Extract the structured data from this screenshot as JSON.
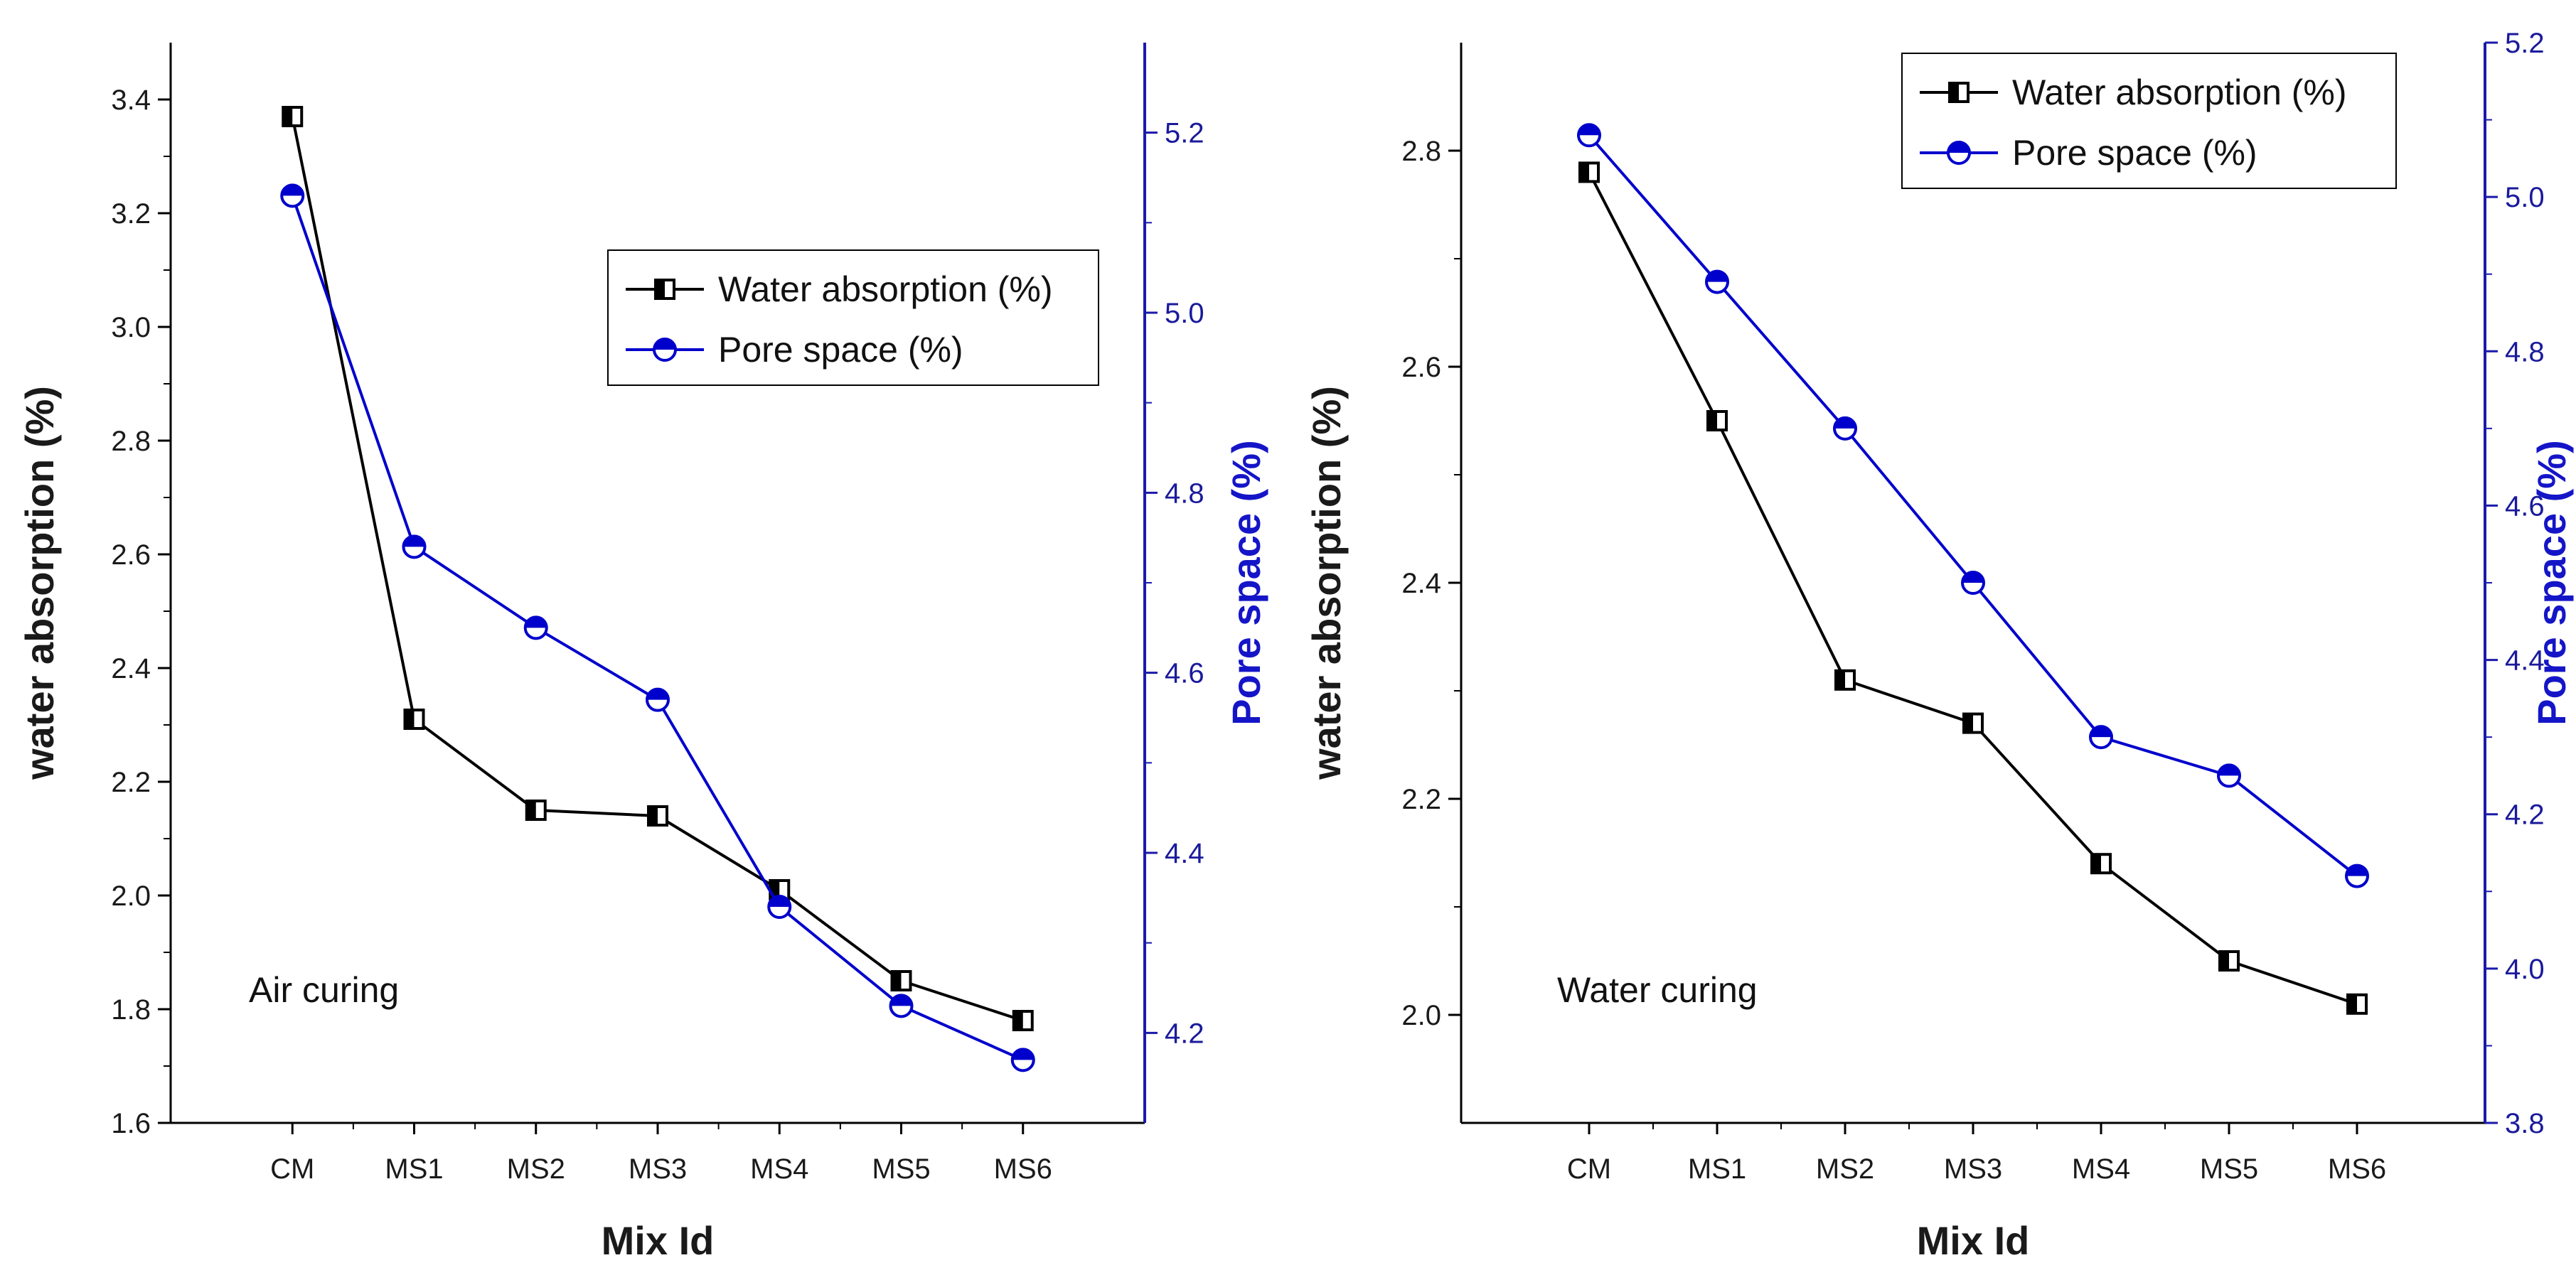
{
  "chart_data": [
    {
      "type": "line",
      "annotation": "Air curing",
      "xlabel": "Mix Id",
      "ylabel": "water absorption (%)",
      "ylabel_right": "Pore space (%)",
      "categories": [
        "CM",
        "MS1",
        "MS2",
        "MS3",
        "MS4",
        "MS5",
        "MS6"
      ],
      "ylim": [
        1.6,
        3.5
      ],
      "yticks": [
        "1.6",
        "1.8",
        "2.0",
        "2.2",
        "2.4",
        "2.6",
        "2.8",
        "3.0",
        "3.2",
        "3.4"
      ],
      "ylim_right": [
        4.1,
        5.3
      ],
      "yticks_right": [
        "4.2",
        "4.4",
        "4.6",
        "4.8",
        "5.0",
        "5.2"
      ],
      "legend_position": "upper-right",
      "series": [
        {
          "name": "Water absorption (%)",
          "axis": "left",
          "color": "#000000",
          "marker": "half-filled-square",
          "values": [
            3.37,
            2.31,
            2.15,
            2.14,
            2.01,
            1.85,
            1.78
          ]
        },
        {
          "name": "Pore space (%)",
          "axis": "right",
          "color": "#0000cc",
          "marker": "half-filled-circle",
          "values": [
            5.13,
            4.74,
            4.65,
            4.57,
            4.34,
            4.23,
            4.17
          ]
        }
      ]
    },
    {
      "type": "line",
      "annotation": "Water curing",
      "xlabel": "Mix Id",
      "ylabel": "water absorption (%)",
      "ylabel_right": "Pore space (%)",
      "categories": [
        "CM",
        "MS1",
        "MS2",
        "MS3",
        "MS4",
        "MS5",
        "MS6"
      ],
      "ylim": [
        1.9,
        2.9
      ],
      "yticks": [
        "2.0",
        "2.2",
        "2.4",
        "2.6",
        "2.8"
      ],
      "ylim_right": [
        3.8,
        5.2
      ],
      "yticks_right": [
        "3.8",
        "4.0",
        "4.2",
        "4.4",
        "4.6",
        "4.8",
        "5.0",
        "5.2"
      ],
      "legend_position": "top-right",
      "series": [
        {
          "name": "Water absorption (%)",
          "axis": "left",
          "color": "#000000",
          "marker": "half-filled-square",
          "values": [
            2.78,
            2.55,
            2.31,
            2.27,
            2.14,
            2.05,
            2.01
          ]
        },
        {
          "name": "Pore space (%)",
          "axis": "right",
          "color": "#0000cc",
          "marker": "half-filled-circle",
          "values": [
            5.08,
            4.89,
            4.7,
            4.5,
            4.3,
            4.25,
            4.12
          ]
        }
      ]
    }
  ]
}
